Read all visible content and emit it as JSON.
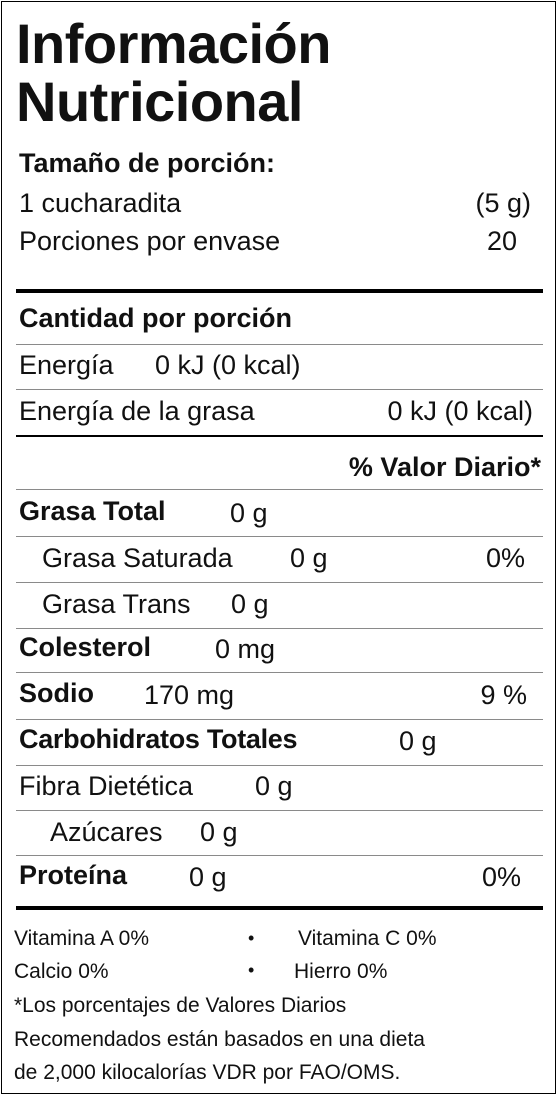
{
  "title_line1": "Información",
  "title_line2": "Nutricional",
  "serving": {
    "heading": "Tamaño de porción:",
    "size_label": "1 cucharadita",
    "size_value": "(5 g)",
    "servings_label": "Porciones por envase",
    "servings_value": "20"
  },
  "amount_heading": "Cantidad por porción",
  "energy": {
    "label": "Energía",
    "value": "0 kJ (0 kcal)"
  },
  "energy_fat": {
    "label": "Energía de la grasa",
    "value": "0 kJ (0 kcal)"
  },
  "dv_heading": "% Valor Diario*",
  "nutrients": {
    "total_fat": {
      "label": "Grasa Total",
      "amount": "0 g"
    },
    "sat_fat": {
      "label": "Grasa Saturada",
      "amount": "0 g",
      "dv": "0%"
    },
    "trans_fat": {
      "label": "Grasa Trans",
      "amount": "0 g"
    },
    "cholesterol": {
      "label": "Colesterol",
      "amount": "0 mg"
    },
    "sodium": {
      "label": "Sodio",
      "amount": "170  mg",
      "dv": "9 %"
    },
    "carbs": {
      "label": "Carbohidratos Totales",
      "amount": "0 g"
    },
    "fiber": {
      "label": "Fibra Dietética",
      "amount": "0 g"
    },
    "sugars": {
      "label": "Azúcares",
      "amount": "0 g"
    },
    "protein": {
      "label": "Proteína",
      "amount": "0 g",
      "dv": "0%"
    }
  },
  "vitamins": {
    "vit_a": "Vitamina A 0%",
    "vit_c": "Vitamina C 0%",
    "calcium": "Calcio 0%",
    "iron": "Hierro 0%",
    "bullet": "•"
  },
  "footnote": {
    "line1": "*Los porcentajes de Valores Diarios",
    "line2": "Recomendados están basados en una dieta",
    "line3": "de 2,000 kilocalorías VDR por FAO/OMS."
  }
}
